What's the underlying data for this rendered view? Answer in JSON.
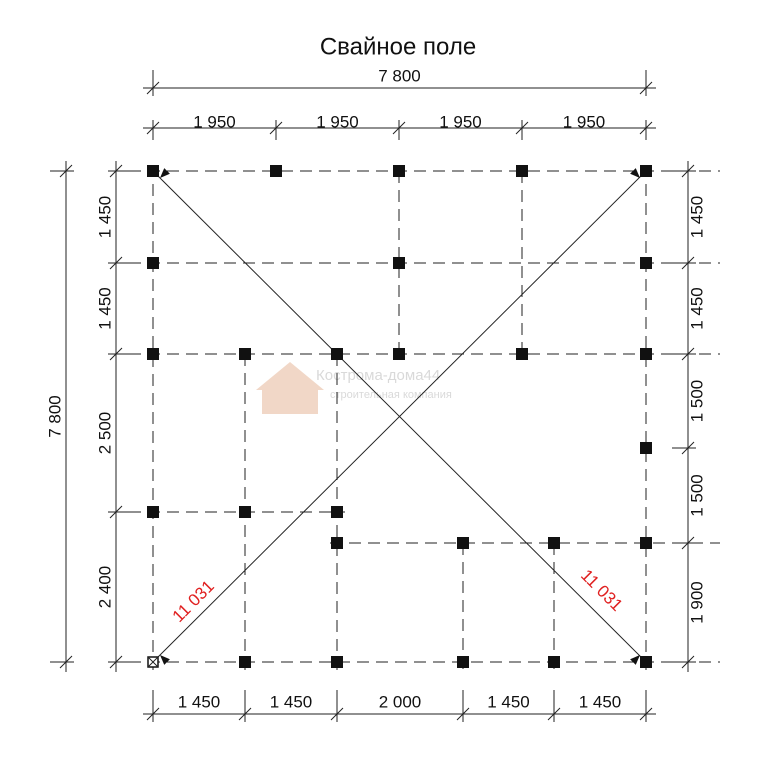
{
  "title": "Свайное поле",
  "watermark": {
    "name": "Кострома-дома44",
    "tagline": "строительная компания"
  },
  "dimensions": {
    "top_total": "7 800",
    "top": [
      "1 950",
      "1 950",
      "1 950",
      "1 950"
    ],
    "left_total": "7 800",
    "left": [
      "1 450",
      "1 450",
      "2 500",
      "2 400"
    ],
    "right": [
      "1 450",
      "1 450",
      "1 500",
      "1 500",
      "1 900"
    ],
    "bottom": [
      "1 450",
      "1 450",
      "2 000",
      "1 450",
      "1 450"
    ]
  },
  "diagonals": [
    "11 031",
    "11 031"
  ]
}
